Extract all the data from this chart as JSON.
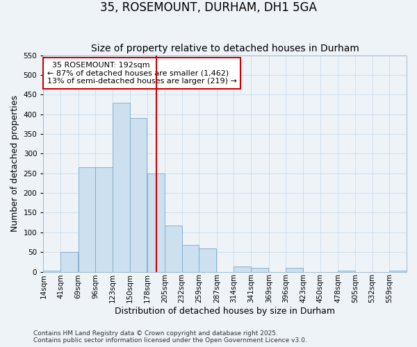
{
  "title": "35, ROSEMOUNT, DURHAM, DH1 5GA",
  "subtitle": "Size of property relative to detached houses in Durham",
  "xlabel": "Distribution of detached houses by size in Durham",
  "ylabel": "Number of detached properties",
  "bin_labels": [
    "14sqm",
    "41sqm",
    "69sqm",
    "96sqm",
    "123sqm",
    "150sqm",
    "178sqm",
    "205sqm",
    "232sqm",
    "259sqm",
    "287sqm",
    "314sqm",
    "341sqm",
    "369sqm",
    "396sqm",
    "423sqm",
    "450sqm",
    "478sqm",
    "505sqm",
    "532sqm",
    "559sqm"
  ],
  "bin_edges": [
    14,
    41,
    69,
    96,
    123,
    150,
    178,
    205,
    232,
    259,
    287,
    314,
    341,
    369,
    396,
    423,
    450,
    478,
    505,
    532,
    559
  ],
  "bin_width": 27,
  "bar_heights": [
    3,
    50,
    265,
    265,
    430,
    390,
    250,
    118,
    68,
    60,
    0,
    14,
    10,
    0,
    10,
    0,
    0,
    3,
    0,
    0,
    2
  ],
  "bar_color": "#cce0f0",
  "bar_edge_color": "#7aaac8",
  "vline_x": 192,
  "vline_color": "#cc0000",
  "ylim": [
    0,
    550
  ],
  "xlim_min": 14,
  "xlim_max": 586,
  "annotation_title": "35 ROSEMOUNT: 192sqm",
  "annotation_line1": "← 87% of detached houses are smaller (1,462)",
  "annotation_line2": "13% of semi-detached houses are larger (219) →",
  "annotation_box_color": "#ffffff",
  "annotation_box_edge": "#cc0000",
  "footer1": "Contains HM Land Registry data © Crown copyright and database right 2025.",
  "footer2": "Contains public sector information licensed under the Open Government Licence v3.0.",
  "grid_color": "#c8dced",
  "background_color": "#eef3f8",
  "title_fontsize": 12,
  "subtitle_fontsize": 10,
  "axis_label_fontsize": 9,
  "tick_fontsize": 7.5,
  "annotation_title_fontsize": 8.5,
  "annotation_body_fontsize": 8,
  "footer_fontsize": 6.5
}
